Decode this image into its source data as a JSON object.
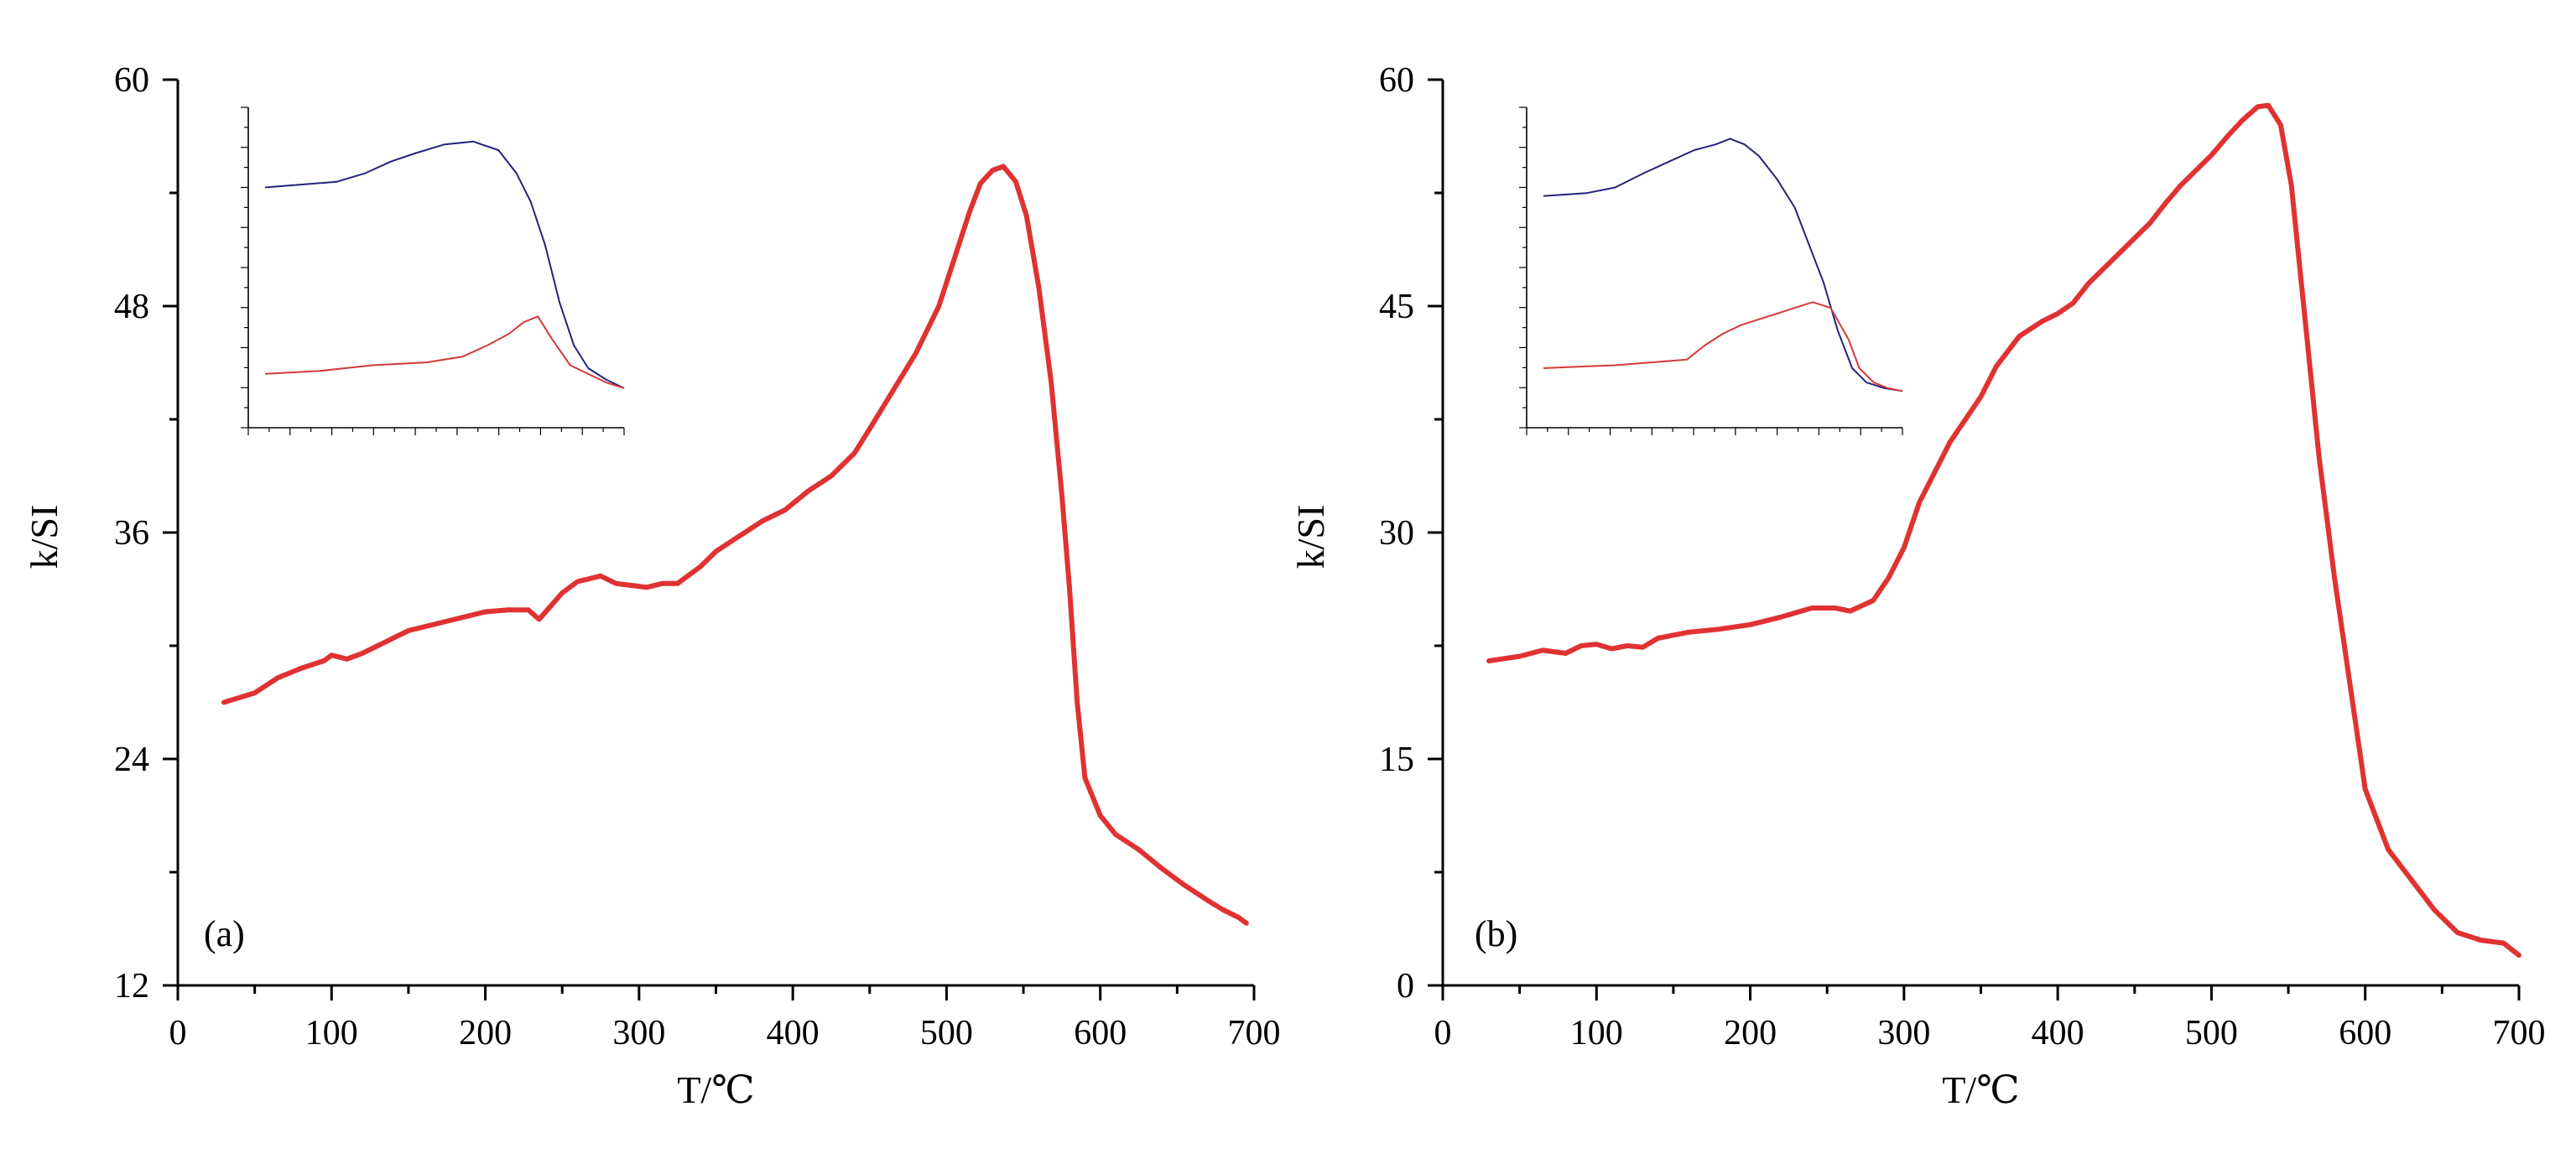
{
  "chart_data": [
    {
      "type": "line",
      "panel_label": "(a)",
      "xlabel": "T/℃",
      "ylabel": "k/SI",
      "xlim": [
        0,
        700
      ],
      "ylim": [
        12,
        60
      ],
      "xticks": [
        0,
        100,
        200,
        300,
        400,
        500,
        600,
        700
      ],
      "yticks": [
        12,
        24,
        36,
        48,
        60
      ],
      "series": [
        {
          "color": "#e03232",
          "x": [
            30,
            50,
            65,
            80,
            95,
            100,
            110,
            120,
            130,
            150,
            170,
            200,
            215,
            228,
            235,
            250,
            260,
            275,
            285,
            295,
            305,
            315,
            325,
            340,
            350,
            365,
            380,
            395,
            410,
            425,
            440,
            450,
            465,
            480,
            495,
            505,
            515,
            522,
            530,
            537,
            545,
            552,
            560,
            568,
            575,
            580,
            585,
            590,
            600,
            610,
            625,
            640,
            655,
            670,
            680,
            690,
            695
          ],
          "y": [
            27.0,
            27.5,
            28.3,
            28.8,
            29.2,
            29.5,
            29.3,
            29.6,
            30.0,
            30.8,
            31.2,
            31.8,
            31.9,
            31.9,
            31.4,
            32.8,
            33.4,
            33.7,
            33.3,
            33.2,
            33.1,
            33.3,
            33.3,
            34.2,
            35.0,
            35.8,
            36.6,
            37.2,
            38.2,
            39.0,
            40.2,
            41.5,
            43.5,
            45.5,
            48.0,
            50.5,
            53.0,
            54.5,
            55.2,
            55.4,
            54.6,
            52.8,
            49.0,
            44.0,
            38.0,
            33.0,
            27.0,
            23.0,
            21.0,
            20.0,
            19.2,
            18.2,
            17.3,
            16.5,
            16.0,
            15.6,
            15.3
          ]
        }
      ],
      "inset": {
        "series": [
          {
            "color": "#23237a",
            "x": [
              0,
              10,
              20,
              28,
              35,
              42,
              50,
              58,
              65,
              70,
              74,
              78,
              82,
              86,
              90,
              95,
              100
            ],
            "y": [
              0.75,
              0.76,
              0.77,
              0.8,
              0.84,
              0.87,
              0.9,
              0.91,
              0.88,
              0.8,
              0.7,
              0.55,
              0.35,
              0.2,
              0.12,
              0.08,
              0.05
            ],
            "x_positions": []
          },
          {
            "color": "#d33a3a",
            "x": [
              0,
              15,
              30,
              45,
              55,
              62,
              68,
              72,
              76,
              80,
              85,
              90,
              95,
              100
            ],
            "y": [
              0.1,
              0.11,
              0.13,
              0.14,
              0.16,
              0.2,
              0.24,
              0.28,
              0.3,
              0.22,
              0.13,
              0.1,
              0.07,
              0.05
            ]
          }
        ]
      }
    },
    {
      "type": "line",
      "panel_label": "(b)",
      "xlabel": "T/℃",
      "ylabel": "k/SI",
      "xlim": [
        0,
        700
      ],
      "ylim": [
        0,
        60
      ],
      "xticks": [
        0,
        100,
        200,
        300,
        400,
        500,
        600,
        700
      ],
      "yticks": [
        0,
        15,
        30,
        45,
        60
      ],
      "series": [
        {
          "color": "#e03232",
          "x": [
            30,
            50,
            65,
            80,
            90,
            100,
            110,
            120,
            130,
            140,
            160,
            180,
            200,
            220,
            240,
            255,
            265,
            280,
            290,
            300,
            310,
            320,
            330,
            340,
            350,
            360,
            375,
            390,
            400,
            410,
            420,
            430,
            440,
            450,
            460,
            470,
            480,
            490,
            500,
            510,
            520,
            530,
            537,
            545,
            552,
            560,
            570,
            580,
            590,
            600,
            615,
            630,
            645,
            660,
            675,
            690,
            700
          ],
          "y": [
            21.5,
            21.8,
            22.2,
            22.0,
            22.5,
            22.6,
            22.3,
            22.5,
            22.4,
            23.0,
            23.4,
            23.6,
            23.9,
            24.4,
            25.0,
            25.0,
            24.8,
            25.5,
            27.0,
            29.0,
            32.0,
            34.0,
            36.0,
            37.5,
            39.0,
            41.0,
            43.0,
            44.0,
            44.5,
            45.2,
            46.5,
            47.5,
            48.5,
            49.5,
            50.5,
            51.8,
            53.0,
            54.0,
            55.0,
            56.2,
            57.3,
            58.2,
            58.3,
            57.0,
            53.0,
            45.0,
            35.0,
            27.0,
            20.0,
            13.0,
            9.0,
            7.0,
            5.0,
            3.5,
            3.0,
            2.8,
            2.0
          ]
        }
      ],
      "inset": {
        "series": [
          {
            "color": "#23237a",
            "x": [
              0,
              12,
              20,
              28,
              35,
              42,
              48,
              52,
              56,
              60,
              65,
              70,
              74,
              78,
              82,
              86,
              90,
              95,
              100
            ],
            "y": [
              0.72,
              0.73,
              0.75,
              0.8,
              0.84,
              0.88,
              0.9,
              0.92,
              0.9,
              0.86,
              0.78,
              0.68,
              0.55,
              0.42,
              0.25,
              0.12,
              0.07,
              0.05,
              0.04
            ]
          },
          {
            "color": "#d33a3a",
            "x": [
              0,
              20,
              40,
              45,
              50,
              55,
              60,
              65,
              70,
              75,
              80,
              85,
              88,
              92,
              96,
              100
            ],
            "y": [
              0.12,
              0.13,
              0.15,
              0.2,
              0.24,
              0.27,
              0.29,
              0.31,
              0.33,
              0.35,
              0.33,
              0.22,
              0.12,
              0.07,
              0.05,
              0.04
            ]
          }
        ]
      }
    }
  ]
}
